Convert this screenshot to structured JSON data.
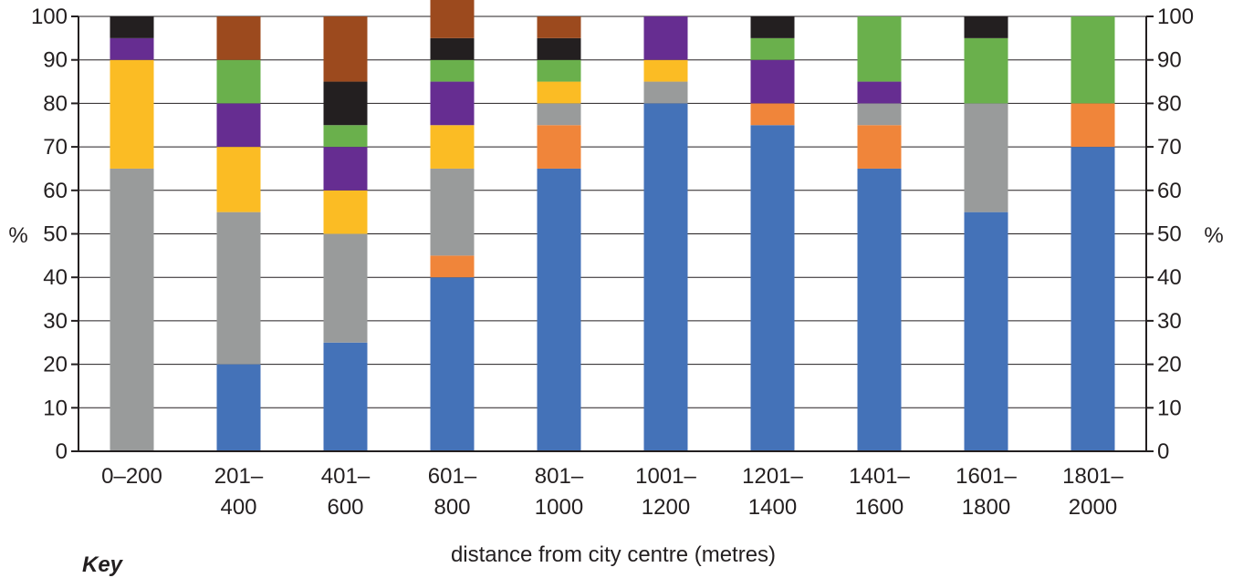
{
  "chart_data": {
    "type": "bar",
    "stacked": true,
    "categories": [
      [
        "0–200"
      ],
      [
        "201–",
        "400"
      ],
      [
        "401–",
        "600"
      ],
      [
        "601–",
        "800"
      ],
      [
        "801–",
        "1000"
      ],
      [
        "1001–",
        "1200"
      ],
      [
        "1201–",
        "1400"
      ],
      [
        "1401–",
        "1600"
      ],
      [
        "1601–",
        "1800"
      ],
      [
        "1801–",
        "2000"
      ]
    ],
    "series": [
      {
        "color": "#4472b8",
        "values": [
          0,
          20,
          25,
          40,
          65,
          80,
          75,
          65,
          55,
          70
        ]
      },
      {
        "color": "#f0853a",
        "values": [
          0,
          0,
          0,
          5,
          10,
          0,
          5,
          10,
          0,
          10
        ]
      },
      {
        "color": "#999b9b",
        "values": [
          65,
          35,
          25,
          20,
          5,
          5,
          0,
          5,
          25,
          0
        ]
      },
      {
        "color": "#fbbc24",
        "values": [
          25,
          15,
          10,
          10,
          5,
          5,
          0,
          0,
          0,
          0
        ]
      },
      {
        "color": "#662d91",
        "values": [
          5,
          10,
          10,
          10,
          0,
          10,
          10,
          5,
          0,
          0
        ]
      },
      {
        "color": "#6ab04c",
        "values": [
          0,
          10,
          5,
          5,
          5,
          0,
          5,
          15,
          15,
          20
        ]
      },
      {
        "color": "#231f20",
        "values": [
          5,
          0,
          10,
          5,
          5,
          0,
          5,
          0,
          5,
          0
        ]
      },
      {
        "color": "#9c4a1e",
        "values": [
          0,
          10,
          15,
          10,
          5,
          0,
          0,
          0,
          0,
          0
        ]
      }
    ],
    "y_ticks": [
      0,
      10,
      20,
      30,
      40,
      50,
      60,
      70,
      80,
      90,
      100
    ],
    "ylim": [
      0,
      100
    ],
    "ylabel_left": "%",
    "ylabel_right": "%",
    "xlabel": "distance from city centre (metres)",
    "grid": true,
    "legend_heading": "Key"
  }
}
